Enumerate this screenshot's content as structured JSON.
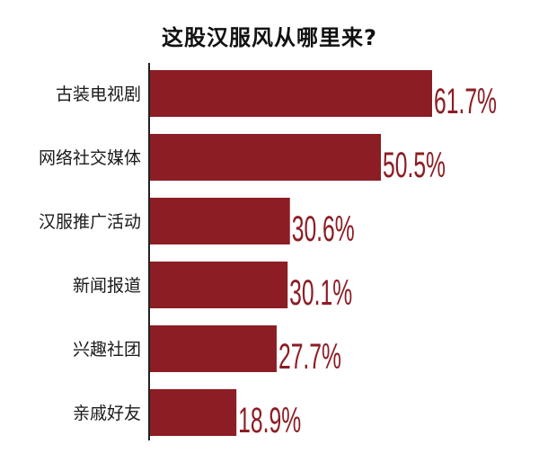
{
  "chart_data": {
    "type": "bar",
    "orientation": "horizontal",
    "title": "这股汉服风从哪里来?",
    "categories": [
      "古装电视剧",
      "网络社交媒体",
      "汉服推广活动",
      "新闻报道",
      "兴趣社团",
      "亲戚好友"
    ],
    "values": [
      61.7,
      50.5,
      30.6,
      30.1,
      27.7,
      18.9
    ],
    "value_labels": [
      "61.7%",
      "50.5%",
      "30.6%",
      "30.1%",
      "27.7%",
      "18.9%"
    ],
    "xlim": [
      0,
      70
    ],
    "grid": false,
    "legend": "none",
    "bar_color": "#8c1d24"
  }
}
